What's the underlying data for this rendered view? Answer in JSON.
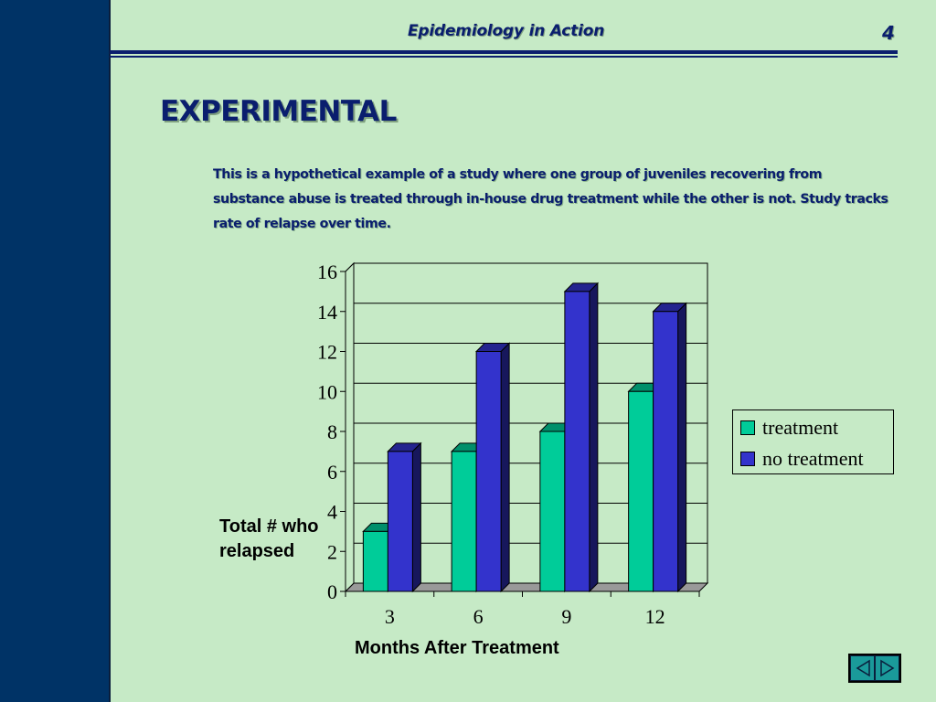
{
  "header": {
    "title": "Epidemiology in Action",
    "page_number": "4"
  },
  "slide": {
    "title": "EXPERIMENTAL",
    "description": "This is a hypothetical example of a study where one group of juveniles recovering from substance abuse is treated through in-house drug treatment while the other is not.  Study tracks rate of relapse over time."
  },
  "colors": {
    "treatment": "#00cc99",
    "no_treatment": "#3333cc",
    "background": "#c6eac6",
    "left_band": "#003366"
  },
  "chart_data": {
    "type": "bar",
    "title": "",
    "xlabel": "Months After Treatment",
    "ylabel": "Total # who relapsed",
    "categories": [
      "3",
      "6",
      "9",
      "12"
    ],
    "series": [
      {
        "name": "treatment",
        "values": [
          3,
          7,
          8,
          10
        ]
      },
      {
        "name": "no treatment",
        "values": [
          7,
          12,
          15,
          14
        ]
      }
    ],
    "ylim": [
      0,
      16
    ],
    "yticks": [
      "0",
      "2",
      "4",
      "6",
      "8",
      "10",
      "12",
      "14",
      "16"
    ],
    "grid": true,
    "legend": "right"
  },
  "nav": {
    "prev_icon": "previous-slide-icon",
    "next_icon": "next-slide-icon"
  }
}
